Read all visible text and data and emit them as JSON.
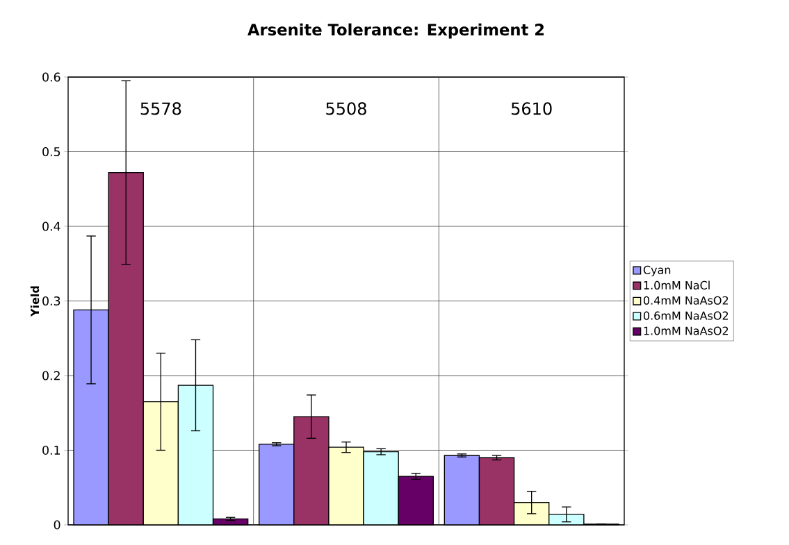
{
  "chart_data": {
    "type": "bar",
    "title": "Arsenite Tolerance: Experiment 2",
    "ylabel": "Yield",
    "categories": [
      "5578",
      "5508",
      "5610"
    ],
    "series": [
      {
        "name": "Cyan",
        "color": "#9999ff",
        "values": [
          0.288,
          0.108,
          0.093
        ],
        "errors": [
          0.099,
          0.002,
          0.002
        ]
      },
      {
        "name": "1.0mM NaCl",
        "color": "#993366",
        "values": [
          0.472,
          0.145,
          0.09
        ],
        "errors": [
          0.123,
          0.029,
          0.003
        ]
      },
      {
        "name": "0.4mM NaAsO2",
        "color": "#ffffcc",
        "values": [
          0.165,
          0.104,
          0.03
        ],
        "errors": [
          0.065,
          0.007,
          0.015
        ]
      },
      {
        "name": "0.6mM NaAsO2",
        "color": "#ccffff",
        "values": [
          0.187,
          0.098,
          0.014
        ],
        "errors": [
          0.061,
          0.004,
          0.01
        ]
      },
      {
        "name": "1.0mM NaAsO2",
        "color": "#660066",
        "values": [
          0.008,
          0.065,
          0.001
        ],
        "errors": [
          0.002,
          0.004,
          null
        ]
      }
    ],
    "ylim": [
      0,
      0.6
    ],
    "yticks": [
      0,
      0.1,
      0.2,
      0.3,
      0.4,
      0.5,
      0.6
    ],
    "grid": true,
    "legend": "right"
  }
}
